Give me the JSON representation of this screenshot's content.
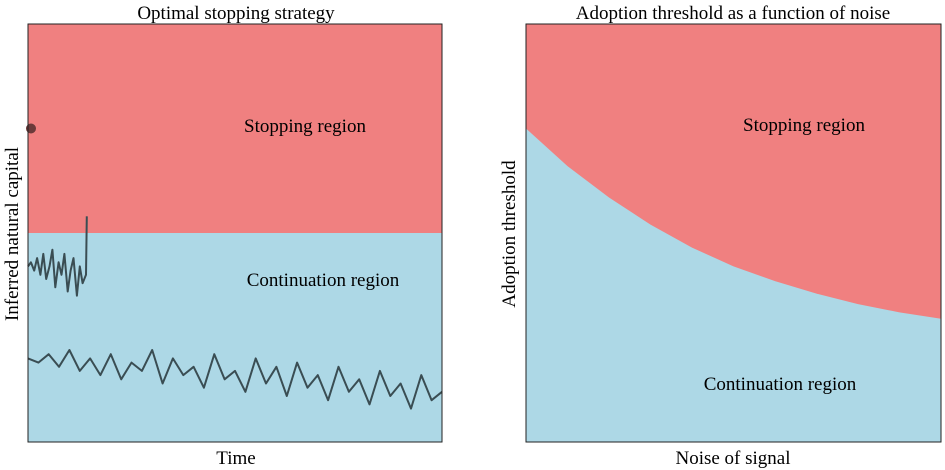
{
  "chart_data": [
    {
      "type": "area",
      "title": "Optimal stopping strategy",
      "xlabel": "Time",
      "ylabel": "Inferred natural capital",
      "ylim": [
        0,
        1
      ],
      "threshold": 0.5,
      "regions": {
        "stop": {
          "label": "Stopping region",
          "color": "#F08080"
        },
        "continue": {
          "label": "Continuation region",
          "color": "#ADD8E6"
        }
      },
      "series": [
        {
          "color": "#3A4D53",
          "note": "path that crosses the threshold",
          "x": [
            0.0,
            0.007,
            0.015,
            0.022,
            0.03,
            0.037,
            0.044,
            0.052,
            0.059,
            0.066,
            0.074,
            0.081,
            0.088,
            0.096,
            0.103,
            0.11,
            0.118,
            0.125,
            0.132,
            0.14,
            0.142
          ],
          "y": [
            0.42,
            0.43,
            0.41,
            0.44,
            0.4,
            0.45,
            0.39,
            0.42,
            0.46,
            0.37,
            0.43,
            0.4,
            0.45,
            0.36,
            0.41,
            0.44,
            0.35,
            0.42,
            0.38,
            0.4,
            0.54
          ]
        },
        {
          "color": "#3A4D53",
          "note": "path that stays below the threshold",
          "x": [
            0.0,
            0.025,
            0.05,
            0.075,
            0.1,
            0.125,
            0.15,
            0.175,
            0.2,
            0.225,
            0.25,
            0.275,
            0.3,
            0.325,
            0.35,
            0.375,
            0.4,
            0.425,
            0.45,
            0.475,
            0.5,
            0.525,
            0.55,
            0.575,
            0.6,
            0.625,
            0.65,
            0.675,
            0.7,
            0.725,
            0.75,
            0.775,
            0.8,
            0.825,
            0.85,
            0.875,
            0.9,
            0.925,
            0.95,
            0.975,
            1.0
          ],
          "y": [
            0.2,
            0.19,
            0.21,
            0.18,
            0.22,
            0.17,
            0.2,
            0.16,
            0.21,
            0.15,
            0.19,
            0.17,
            0.22,
            0.14,
            0.2,
            0.16,
            0.18,
            0.13,
            0.21,
            0.15,
            0.17,
            0.12,
            0.2,
            0.14,
            0.18,
            0.11,
            0.19,
            0.13,
            0.16,
            0.1,
            0.18,
            0.12,
            0.15,
            0.09,
            0.17,
            0.11,
            0.14,
            0.08,
            0.16,
            0.1,
            0.12
          ]
        }
      ],
      "markers": [
        {
          "x": 0.0,
          "y": 0.75,
          "color": "#6B3A3A"
        }
      ]
    },
    {
      "type": "area",
      "title": "Adoption threshold as a function of noise",
      "xlabel": "Noise of signal",
      "ylabel": "Adoption threshold",
      "ylim": [
        0,
        1
      ],
      "regions": {
        "stop": {
          "label": "Stopping region",
          "color": "#F08080"
        },
        "continue": {
          "label": "Continuation region",
          "color": "#ADD8E6"
        }
      },
      "boundary": {
        "x": [
          0.0,
          0.1,
          0.2,
          0.3,
          0.4,
          0.5,
          0.6,
          0.7,
          0.8,
          0.9,
          1.0
        ],
        "y": [
          0.75,
          0.66,
          0.585,
          0.52,
          0.465,
          0.42,
          0.385,
          0.355,
          0.33,
          0.31,
          0.295
        ]
      }
    }
  ]
}
